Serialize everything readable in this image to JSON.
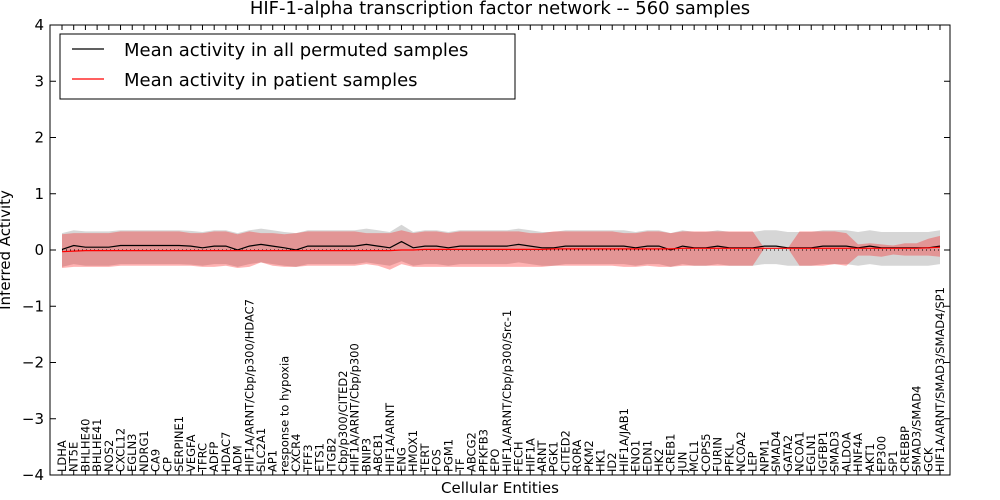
{
  "chart_data": {
    "type": "line",
    "title": "HIF-1-alpha transcription factor network -- 560 samples",
    "xlabel": "Cellular Entities",
    "ylabel": "Inferred Activity",
    "ylim": [
      -4,
      4
    ],
    "yticks": [
      4,
      3,
      2,
      1,
      0,
      -1,
      -2,
      -3,
      -4
    ],
    "ytick_labels": [
      "4",
      "3",
      "2",
      "1",
      "0",
      "−1",
      "−2",
      "−3",
      "−4"
    ],
    "grid": false,
    "legend_position": "top-left",
    "reference_line": 0,
    "categories": [
      "LDHA",
      "NT5E",
      "BHLHE40",
      "BHLHE41",
      "NOS2",
      "CXCL12",
      "EGLN3",
      "NDRG1",
      "CA9",
      "CP",
      "SERPINE1",
      "VEGFA",
      "TFRC",
      "ADFP",
      "HDAC7",
      "ADM",
      "HIF1A/ARNT/Cbp/p300/HDAC7",
      "SLC2A1",
      "AP1",
      "response to hypoxia",
      "CXCR4",
      "TFF3",
      "ETS1",
      "ITGB2",
      "Cbp/p300/CITED2",
      "HIF1A/ARNT/Cbp/p300",
      "BNIP3",
      "ABCB1",
      "HIF1A/ARNT",
      "ENG",
      "HMOX1",
      "TERT",
      "FOS",
      "PGM1",
      "TF",
      "ABCG2",
      "PFKFB3",
      "EPO",
      "HIF1A/ARNT/Cbp/p300/Src-1",
      "FECH",
      "HIF1A",
      "ARNT",
      "PGK1",
      "CITED2",
      "RORA",
      "PKM2",
      "HK1",
      "ID2",
      "HIF1A/JAB1",
      "ENO1",
      "EDN1",
      "HK2",
      "CREB1",
      "JUN",
      "MCL1",
      "COPS5",
      "FURIN",
      "PFKL",
      "NCOA2",
      "LEP",
      "NPM1",
      "SMAD4",
      "GATA2",
      "NCOA1",
      "EGLN1",
      "IGFBP1",
      "SMAD3",
      "ALDOA",
      "HNF4A",
      "AKT1",
      "EP300",
      "SP1",
      "CREBBP",
      "SMAD3/SMAD4",
      "GCK",
      "HIF1A/ARNT/SMAD3/SMAD4/SP1"
    ],
    "series": [
      {
        "name": "Mean activity in all permuted samples",
        "color": "#000000",
        "values": [
          0.01,
          0.08,
          0.05,
          0.05,
          0.05,
          0.08,
          0.08,
          0.08,
          0.08,
          0.08,
          0.08,
          0.07,
          0.04,
          0.07,
          0.07,
          0.0,
          0.07,
          0.1,
          0.07,
          0.04,
          0.0,
          0.07,
          0.07,
          0.07,
          0.07,
          0.07,
          0.1,
          0.07,
          0.04,
          0.15,
          0.04,
          0.07,
          0.07,
          0.04,
          0.07,
          0.07,
          0.07,
          0.07,
          0.07,
          0.1,
          0.07,
          0.04,
          0.04,
          0.07,
          0.07,
          0.07,
          0.07,
          0.07,
          0.07,
          0.04,
          0.07,
          0.07,
          0.0,
          0.07,
          0.04,
          0.04,
          0.07,
          0.04,
          0.04,
          0.04,
          0.07,
          0.07,
          0.04,
          0.04,
          0.04,
          0.07,
          0.07,
          0.07,
          0.04,
          0.07,
          0.04,
          0.04,
          0.04,
          0.04,
          0.04,
          0.07
        ],
        "lower": [
          -0.3,
          -0.25,
          -0.28,
          -0.28,
          -0.28,
          -0.25,
          -0.25,
          -0.25,
          -0.25,
          -0.25,
          -0.25,
          -0.26,
          -0.28,
          -0.25,
          -0.25,
          -0.3,
          -0.25,
          -0.22,
          -0.25,
          -0.28,
          -0.3,
          -0.25,
          -0.25,
          -0.25,
          -0.25,
          -0.25,
          -0.22,
          -0.25,
          -0.28,
          -0.2,
          -0.28,
          -0.25,
          -0.25,
          -0.28,
          -0.25,
          -0.25,
          -0.25,
          -0.25,
          -0.25,
          -0.22,
          -0.25,
          -0.28,
          -0.28,
          -0.25,
          -0.25,
          -0.25,
          -0.25,
          -0.25,
          -0.25,
          -0.28,
          -0.25,
          -0.25,
          -0.3,
          -0.25,
          -0.28,
          -0.28,
          -0.25,
          -0.28,
          -0.28,
          -0.28,
          -0.25,
          -0.25,
          -0.28,
          -0.28,
          -0.28,
          -0.25,
          -0.25,
          -0.25,
          -0.28,
          -0.25,
          -0.28,
          -0.28,
          -0.28,
          -0.28,
          -0.28,
          -0.25
        ],
        "upper": [
          0.3,
          0.35,
          0.33,
          0.33,
          0.33,
          0.35,
          0.35,
          0.35,
          0.35,
          0.35,
          0.35,
          0.34,
          0.32,
          0.35,
          0.35,
          0.3,
          0.35,
          0.38,
          0.35,
          0.32,
          0.3,
          0.35,
          0.35,
          0.35,
          0.35,
          0.35,
          0.38,
          0.35,
          0.32,
          0.45,
          0.32,
          0.35,
          0.35,
          0.32,
          0.35,
          0.35,
          0.35,
          0.35,
          0.35,
          0.38,
          0.35,
          0.32,
          0.32,
          0.35,
          0.35,
          0.35,
          0.35,
          0.35,
          0.35,
          0.32,
          0.35,
          0.35,
          0.3,
          0.35,
          0.32,
          0.32,
          0.35,
          0.32,
          0.32,
          0.32,
          0.35,
          0.35,
          0.32,
          0.32,
          0.32,
          0.35,
          0.35,
          0.35,
          0.32,
          0.35,
          0.32,
          0.32,
          0.32,
          0.32,
          0.32,
          0.35
        ]
      },
      {
        "name": "Mean activity in patient samples",
        "color": "#ff0000",
        "values": [
          -0.03,
          -0.02,
          -0.01,
          -0.01,
          -0.01,
          -0.01,
          -0.01,
          -0.01,
          -0.01,
          -0.01,
          -0.01,
          -0.01,
          -0.01,
          -0.01,
          -0.01,
          -0.01,
          -0.01,
          -0.01,
          -0.01,
          -0.01,
          -0.01,
          -0.01,
          -0.01,
          -0.01,
          -0.01,
          -0.01,
          -0.01,
          -0.01,
          -0.01,
          0.0,
          0.0,
          0.01,
          0.01,
          0.01,
          0.01,
          0.01,
          0.01,
          0.01,
          0.01,
          0.01,
          0.01,
          0.01,
          0.02,
          0.02,
          0.02,
          0.02,
          0.02,
          0.02,
          0.02,
          0.02,
          0.02,
          0.02,
          0.02,
          0.03,
          0.03,
          0.03,
          0.03,
          0.03,
          0.03,
          0.03,
          0.03,
          0.03,
          0.03,
          0.03,
          0.03,
          0.03,
          0.03,
          0.03,
          0.03,
          0.03,
          0.03,
          0.03,
          0.03,
          0.03,
          0.04,
          0.05
        ],
        "lower": [
          -0.32,
          -0.3,
          -0.3,
          -0.3,
          -0.3,
          -0.28,
          -0.28,
          -0.28,
          -0.28,
          -0.28,
          -0.28,
          -0.28,
          -0.3,
          -0.3,
          -0.28,
          -0.32,
          -0.3,
          -0.22,
          -0.28,
          -0.3,
          -0.3,
          -0.28,
          -0.28,
          -0.28,
          -0.28,
          -0.28,
          -0.25,
          -0.28,
          -0.35,
          -0.25,
          -0.3,
          -0.3,
          -0.3,
          -0.3,
          -0.3,
          -0.3,
          -0.3,
          -0.3,
          -0.3,
          -0.3,
          -0.3,
          -0.3,
          -0.28,
          -0.28,
          -0.28,
          -0.28,
          -0.28,
          -0.28,
          -0.3,
          -0.3,
          -0.28,
          -0.3,
          -0.3,
          -0.28,
          -0.28,
          -0.28,
          -0.28,
          -0.28,
          -0.28,
          -0.28,
          0.03,
          0.03,
          0.03,
          -0.28,
          -0.28,
          -0.28,
          -0.25,
          -0.28,
          -0.1,
          -0.1,
          -0.12,
          -0.08,
          -0.1,
          -0.1,
          -0.1,
          -0.12
        ],
        "upper": [
          0.28,
          0.3,
          0.3,
          0.3,
          0.3,
          0.33,
          0.33,
          0.33,
          0.33,
          0.33,
          0.33,
          0.3,
          0.3,
          0.33,
          0.33,
          0.28,
          0.33,
          0.3,
          0.3,
          0.28,
          0.3,
          0.33,
          0.33,
          0.33,
          0.33,
          0.33,
          0.3,
          0.3,
          0.3,
          0.35,
          0.3,
          0.33,
          0.33,
          0.3,
          0.33,
          0.33,
          0.33,
          0.33,
          0.33,
          0.33,
          0.3,
          0.3,
          0.33,
          0.33,
          0.33,
          0.33,
          0.33,
          0.33,
          0.3,
          0.3,
          0.33,
          0.33,
          0.3,
          0.33,
          0.33,
          0.33,
          0.33,
          0.33,
          0.33,
          0.33,
          0.03,
          0.03,
          0.03,
          0.33,
          0.33,
          0.33,
          0.33,
          0.3,
          0.1,
          0.12,
          0.1,
          0.08,
          0.12,
          0.12,
          0.2,
          0.25
        ]
      }
    ]
  }
}
